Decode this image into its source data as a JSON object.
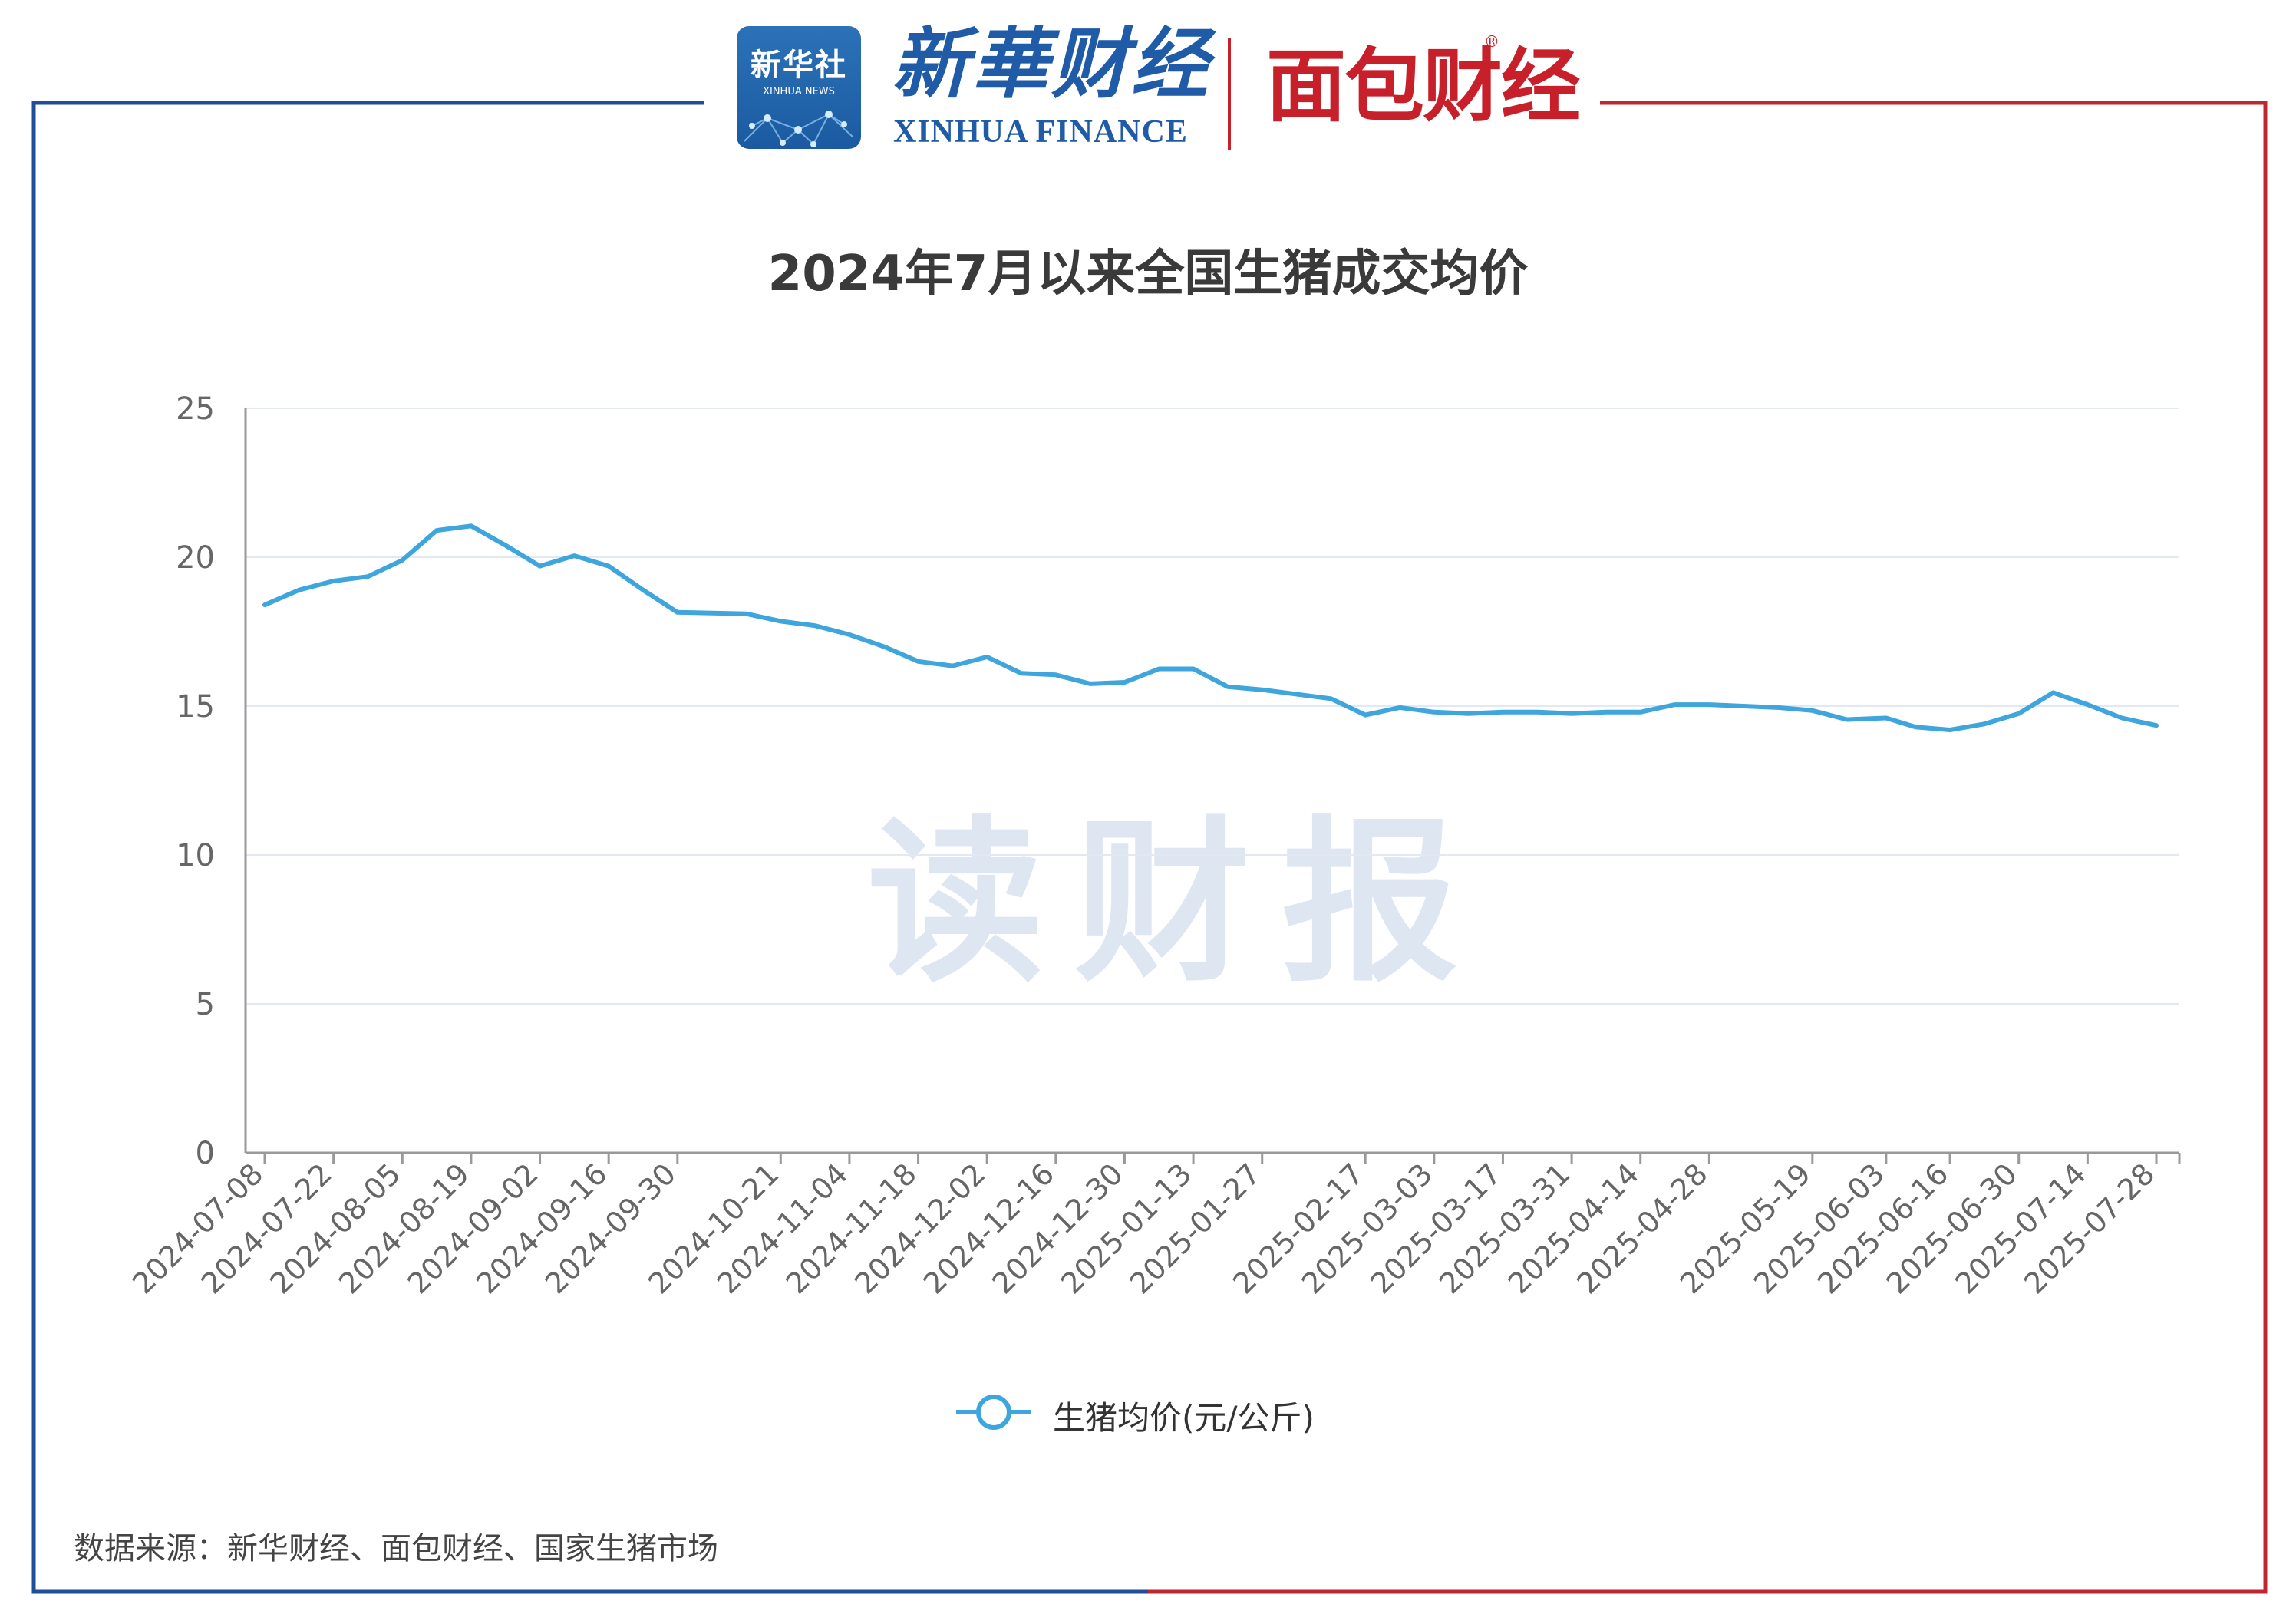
{
  "header": {
    "xinhua_news_badge_cn": "新华社",
    "xinhua_news_badge_en": "XINHUA NEWS",
    "xinhua_finance_cn": "新華财经",
    "xinhua_finance_en": "XINHUA FINANCE",
    "mianbao_logo": "面包财经",
    "registered_mark": "®"
  },
  "watermark": "读财报",
  "source_note": "数据来源：新华财经、面包财经、国家生猪市场",
  "colors": {
    "frame_left": "#1f4e9a",
    "frame_right": "#c0262d",
    "line": "#3ea6dc",
    "grid": "#e3e8f2",
    "axis": "#999999"
  },
  "chart_data": {
    "type": "line",
    "title": "2024年7月以来全国生猪成交均价",
    "xlabel": "",
    "ylabel": "",
    "ylim": [
      0,
      25
    ],
    "yticks": [
      0,
      5,
      10,
      15,
      20,
      25
    ],
    "grid": true,
    "legend_position": "bottom-center",
    "x_tick_labels": [
      "2024-07-08",
      "2024-07-22",
      "2024-08-05",
      "2024-08-19",
      "2024-09-02",
      "2024-09-16",
      "2024-09-30",
      "2024-10-21",
      "2024-11-04",
      "2024-11-18",
      "2024-12-02",
      "2024-12-16",
      "2024-12-30",
      "2025-01-13",
      "2025-01-27",
      "2025-02-17",
      "2025-03-03",
      "2025-03-17",
      "2025-03-31",
      "2025-04-14",
      "2025-04-28",
      "2025-05-19",
      "2025-06-03",
      "2025-06-16",
      "2025-06-30",
      "2025-07-14",
      "2025-07-28"
    ],
    "x": [
      "2024-07-08",
      "2024-07-15",
      "2024-07-22",
      "2024-07-29",
      "2024-08-05",
      "2024-08-12",
      "2024-08-19",
      "2024-08-26",
      "2024-09-02",
      "2024-09-09",
      "2024-09-16",
      "2024-09-23",
      "2024-09-30",
      "2024-10-14",
      "2024-10-21",
      "2024-10-28",
      "2024-11-04",
      "2024-11-11",
      "2024-11-18",
      "2024-11-25",
      "2024-12-02",
      "2024-12-09",
      "2024-12-16",
      "2024-12-23",
      "2024-12-30",
      "2025-01-06",
      "2025-01-13",
      "2025-01-20",
      "2025-01-27",
      "2025-02-10",
      "2025-02-17",
      "2025-02-24",
      "2025-03-03",
      "2025-03-10",
      "2025-03-17",
      "2025-03-24",
      "2025-03-31",
      "2025-04-07",
      "2025-04-14",
      "2025-04-21",
      "2025-04-28",
      "2025-05-12",
      "2025-05-19",
      "2025-05-26",
      "2025-06-03",
      "2025-06-09",
      "2025-06-16",
      "2025-06-23",
      "2025-06-30",
      "2025-07-07",
      "2025-07-14",
      "2025-07-21",
      "2025-07-28"
    ],
    "series": [
      {
        "name": "生猪均价(元/公斤)",
        "values": [
          18.4,
          18.9,
          19.2,
          19.35,
          19.9,
          20.9,
          21.05,
          20.4,
          19.7,
          20.05,
          19.7,
          18.9,
          18.15,
          18.1,
          17.85,
          17.7,
          17.4,
          17.0,
          16.5,
          16.35,
          16.65,
          16.1,
          16.05,
          15.75,
          15.8,
          16.25,
          16.25,
          15.65,
          15.55,
          15.25,
          14.7,
          14.95,
          14.8,
          14.75,
          14.8,
          14.8,
          14.75,
          14.8,
          14.8,
          15.05,
          15.05,
          14.95,
          14.85,
          14.55,
          14.6,
          14.3,
          14.2,
          14.4,
          14.75,
          15.45,
          15.05,
          14.6,
          14.35
        ]
      }
    ]
  }
}
